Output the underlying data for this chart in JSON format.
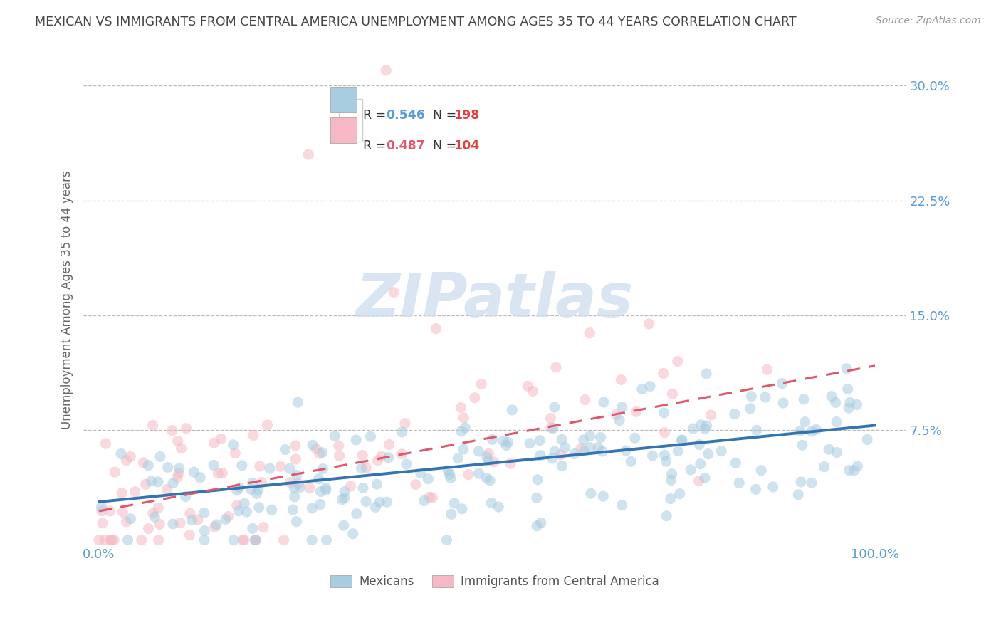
{
  "title": "MEXICAN VS IMMIGRANTS FROM CENTRAL AMERICA UNEMPLOYMENT AMONG AGES 35 TO 44 YEARS CORRELATION CHART",
  "source": "Source: ZipAtlas.com",
  "ylabel": "Unemployment Among Ages 35 to 44 years",
  "yticks": [
    0.075,
    0.15,
    0.225,
    0.3
  ],
  "yticklabels": [
    "7.5%",
    "15.0%",
    "22.5%",
    "30.0%"
  ],
  "xticks": [
    0.0,
    1.0
  ],
  "xticklabels": [
    "0.0%",
    "100.0%"
  ],
  "ylim": [
    0.0,
    0.32
  ],
  "xlim": [
    -0.02,
    1.04
  ],
  "r_mexican": 0.546,
  "n_mexican": 198,
  "r_central": 0.487,
  "n_central": 104,
  "legend_labels": [
    "Mexicans",
    "Immigrants from Central America"
  ],
  "color_mexican": "#a8cce0",
  "color_central": "#f5b8c4",
  "line_color_mexican": "#3474b0",
  "line_color_central": "#e05870",
  "scatter_alpha": 0.55,
  "scatter_size": 120,
  "background_color": "#ffffff",
  "grid_color": "#bbbbbb",
  "title_color": "#444444",
  "axis_label_color": "#666666",
  "tick_label_color": "#5b9bd5",
  "watermark": "ZIPatlas",
  "watermark_color": "#d0dff0"
}
